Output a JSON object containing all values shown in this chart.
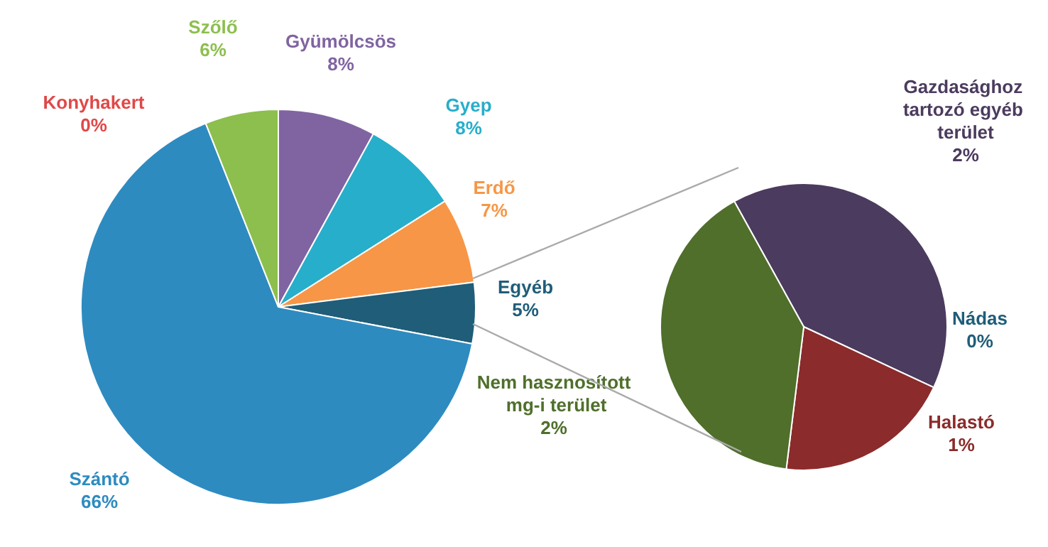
{
  "chart_data": [
    {
      "type": "pie",
      "categories": [
        "Gyümölcsös",
        "Gyep",
        "Erdő",
        "Egyéb",
        "Szántó",
        "Konyhakert",
        "Szőlő"
      ],
      "values": [
        8,
        8,
        7,
        5,
        66,
        0,
        6
      ],
      "colors": [
        "#8064a2",
        "#27aecb",
        "#f79646",
        "#1f5d78",
        "#2e8bc0",
        "#e04848",
        "#8cbf4e"
      ],
      "value_labels": [
        "8%",
        "8%",
        "7%",
        "5%",
        "66%",
        "0%",
        "6%"
      ]
    },
    {
      "type": "pie",
      "categories": [
        "Gazdasághoz tartozó egyéb terület",
        "Nádas",
        "Halastó",
        "Nem hasznosított mg-i terület"
      ],
      "values": [
        2,
        0,
        1,
        2
      ],
      "colors": [
        "#4b3b5e",
        "#1f5d78",
        "#8b2b2b",
        "#4f6f2b"
      ],
      "value_labels": [
        "2%",
        "0%",
        "1%",
        "2%"
      ]
    }
  ]
}
